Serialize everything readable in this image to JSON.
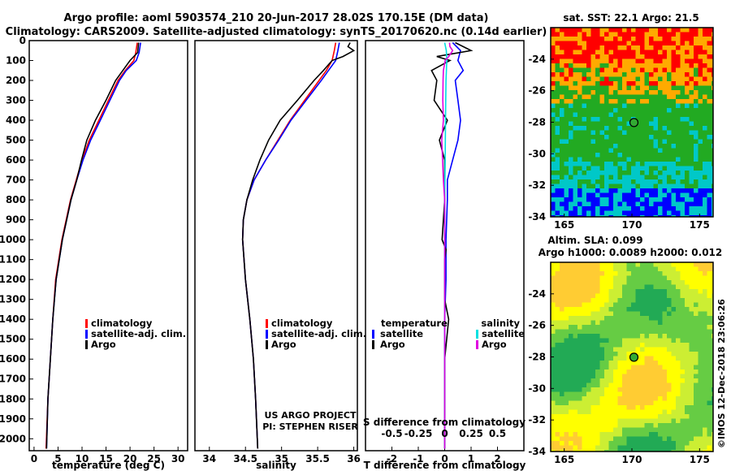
{
  "header": {
    "line1": "Argo profile: aoml 5903574_210 20-Jun-2017 28.02S 170.15E (DM data)",
    "line2": "Climatology: CARS2009. Satellite-adjusted climatology: synTS_20170620.nc (0.14d earlier)"
  },
  "credits": {
    "line1": "US ARGO PROJECT",
    "line2": "PI: STEPHEN RISER",
    "imos": "©IMOS 12-Dec-2018 23:06:26"
  },
  "chart_data": [
    {
      "type": "line",
      "panel": "temperature",
      "xlabel": "temperature (deg C)",
      "ylabel": "",
      "xlim": [
        -1,
        32
      ],
      "ylim": [
        2060,
        0
      ],
      "y_reversed": true,
      "xticks": [
        0,
        5,
        10,
        15,
        20,
        25,
        30
      ],
      "yticks": [
        0,
        100,
        200,
        300,
        400,
        500,
        600,
        700,
        800,
        900,
        1000,
        1100,
        1200,
        1300,
        1400,
        1500,
        1600,
        1700,
        1800,
        1900,
        2000
      ],
      "legend": [
        "climatology",
        "satellite-adj. clim.",
        "Argo"
      ],
      "series": [
        {
          "name": "climatology",
          "color": "#ff0000",
          "depth": [
            10,
            60,
            100,
            150,
            200,
            300,
            400,
            500,
            600,
            700,
            800,
            1000,
            1200,
            1400,
            1600,
            1800,
            2050
          ],
          "values": [
            21.5,
            21.2,
            20.8,
            19.0,
            17.5,
            15.5,
            13.5,
            11.5,
            10.0,
            8.8,
            7.6,
            5.8,
            4.5,
            3.9,
            3.4,
            2.9,
            2.5
          ]
        },
        {
          "name": "satellite-adj. clim.",
          "color": "#0000ff",
          "depth": [
            10,
            60,
            100,
            150,
            200,
            300,
            400,
            500,
            600,
            700,
            800,
            1000,
            1200,
            1400,
            1600,
            1800,
            2050
          ],
          "values": [
            22.2,
            21.9,
            21.3,
            19.2,
            17.8,
            15.8,
            13.8,
            11.8,
            10.2,
            8.9,
            7.7,
            5.9,
            4.6,
            3.9,
            3.4,
            2.9,
            2.6
          ]
        },
        {
          "name": "Argo",
          "color": "#000000",
          "depth": [
            10,
            60,
            100,
            150,
            200,
            300,
            400,
            500,
            600,
            700,
            800,
            1000,
            1200,
            1400,
            1600,
            1800,
            2050
          ],
          "values": [
            21.8,
            21.6,
            20.0,
            18.5,
            17.0,
            15.0,
            12.8,
            11.0,
            9.9,
            8.9,
            7.7,
            5.9,
            4.6,
            3.9,
            3.4,
            2.9,
            2.6
          ]
        }
      ]
    },
    {
      "type": "line",
      "panel": "salinity",
      "xlabel": "salinity",
      "ylabel": "",
      "xlim": [
        33.8,
        36.05
      ],
      "ylim": [
        2060,
        0
      ],
      "y_reversed": true,
      "xticks": [
        34,
        34.5,
        35,
        35.5,
        36
      ],
      "legend": [
        "climatology",
        "satellite-adj. clim.",
        "Argo"
      ],
      "series": [
        {
          "name": "climatology",
          "color": "#ff0000",
          "depth": [
            10,
            50,
            100,
            150,
            200,
            300,
            400,
            500,
            600,
            700,
            800,
            900,
            1000,
            1200,
            1400,
            1600,
            1800,
            2050
          ],
          "values": [
            35.75,
            35.73,
            35.7,
            35.62,
            35.52,
            35.32,
            35.12,
            34.95,
            34.78,
            34.62,
            34.52,
            34.47,
            34.46,
            34.5,
            34.56,
            34.61,
            34.64,
            34.67
          ]
        },
        {
          "name": "satellite-adj. clim.",
          "color": "#0000ff",
          "depth": [
            10,
            50,
            100,
            150,
            200,
            300,
            400,
            500,
            600,
            700,
            800,
            900,
            1000,
            1200,
            1400,
            1600,
            1800,
            2050
          ],
          "values": [
            35.8,
            35.78,
            35.75,
            35.65,
            35.55,
            35.34,
            35.13,
            34.96,
            34.78,
            34.62,
            34.52,
            34.47,
            34.46,
            34.5,
            34.56,
            34.61,
            34.64,
            34.67
          ]
        },
        {
          "name": "Argo",
          "color": "#000000",
          "depth": [
            10,
            30,
            50,
            80,
            100,
            150,
            200,
            300,
            400,
            500,
            600,
            700,
            800,
            900,
            1000,
            1200,
            1400,
            1600,
            1800,
            2050
          ],
          "values": [
            35.95,
            35.92,
            36.0,
            35.85,
            35.7,
            35.58,
            35.45,
            35.22,
            34.98,
            34.82,
            34.7,
            34.6,
            34.52,
            34.47,
            34.46,
            34.5,
            34.56,
            34.61,
            34.64,
            34.67
          ]
        }
      ]
    },
    {
      "type": "line",
      "panel": "difference",
      "xlabel": "T difference from climatology",
      "xlabel2": "S difference from climatology",
      "xlim": [
        -3,
        3
      ],
      "ylim": [
        2060,
        0
      ],
      "y_reversed": true,
      "xticks": [
        -2,
        -1,
        0,
        1,
        2
      ],
      "xticks_labels": [
        "-2",
        "-1",
        "0",
        "1",
        "2"
      ],
      "sticks": [
        -0.5,
        -0.25,
        0,
        0.25,
        0.5
      ],
      "sticks_labels": [
        "-0.5",
        "-0.25",
        "0",
        "0.25",
        "0.5"
      ],
      "legend_left_title": "temperature",
      "legend_right_title": "salinity",
      "legend_left": [
        "satellite",
        "Argo"
      ],
      "legend_right": [
        "satellite",
        "Argo"
      ],
      "series": [
        {
          "name": "temperature satellite",
          "color": "#0000ff",
          "depth": [
            10,
            50,
            100,
            150,
            200,
            300,
            400,
            500,
            600,
            700,
            800,
            1000,
            1200,
            1400,
            1600,
            1800,
            2050
          ],
          "values": [
            0.3,
            0.6,
            0.5,
            0.7,
            0.4,
            0.5,
            0.6,
            0.5,
            0.3,
            0.1,
            0.1,
            0.05,
            0.05,
            0.0,
            0.0,
            0.0,
            0.0
          ]
        },
        {
          "name": "temperature Argo",
          "color": "#000000",
          "depth": [
            10,
            50,
            80,
            100,
            150,
            200,
            300,
            400,
            500,
            600,
            700,
            800,
            1000,
            1050,
            1100,
            1300,
            1400,
            1600,
            2050
          ],
          "values": [
            0.4,
            1.0,
            -0.3,
            0.2,
            -0.5,
            -0.3,
            -0.4,
            0.1,
            -0.2,
            0.0,
            0.0,
            0.0,
            -0.1,
            0.05,
            0.0,
            0.0,
            0.15,
            0.0,
            0.0
          ]
        },
        {
          "name": "salinity satellite",
          "color": "#00e0e0",
          "depth": [
            10,
            50,
            100,
            200,
            400,
            600,
            800,
            1000,
            1400,
            2050
          ],
          "values": [
            0.0,
            0.06,
            0.08,
            0.05,
            0.03,
            0.02,
            0.0,
            0.0,
            0.0,
            0.0
          ]
        },
        {
          "name": "salinity Argo",
          "color": "#e000e0",
          "depth": [
            10,
            30,
            50,
            80,
            100,
            150,
            200,
            300,
            400,
            500,
            600,
            700,
            800,
            900,
            1000,
            1300,
            1400,
            2050
          ],
          "values": [
            0.18,
            0.2,
            0.3,
            0.15,
            0.02,
            -0.05,
            -0.06,
            -0.07,
            -0.05,
            -0.11,
            -0.08,
            -0.05,
            0.0,
            0.0,
            0.0,
            0.0,
            0.0,
            0.0
          ]
        }
      ]
    },
    {
      "type": "heatmap",
      "panel": "map-sst",
      "title": "sat. SST: 22.1 Argo: 21.5",
      "xlim": [
        164,
        176
      ],
      "ylim": [
        -34,
        -22
      ],
      "xticks": [
        165,
        170,
        175
      ],
      "yticks": [
        -24,
        -26,
        -28,
        -30,
        -32,
        -34
      ],
      "marker": {
        "lon": 170.15,
        "lat": -28.02
      },
      "colors": [
        "#ff0000",
        "#ffaa00",
        "#22aa22",
        "#00c8c8",
        "#0000ff"
      ]
    },
    {
      "type": "heatmap",
      "panel": "map-sla",
      "title": "Altim. SLA: 0.099",
      "subtitle": "Argo h1000: 0.0089 h2000: 0.012",
      "xlim": [
        164,
        176
      ],
      "ylim": [
        -34,
        -22
      ],
      "xticks": [
        165,
        170,
        175
      ],
      "yticks": [
        -24,
        -26,
        -28,
        -30,
        -32,
        -34
      ],
      "marker": {
        "lon": 170.15,
        "lat": -28.02
      },
      "colors": [
        "#ffff00",
        "#ccee33",
        "#66cc44",
        "#22aa55",
        "#ffcc33"
      ]
    }
  ]
}
